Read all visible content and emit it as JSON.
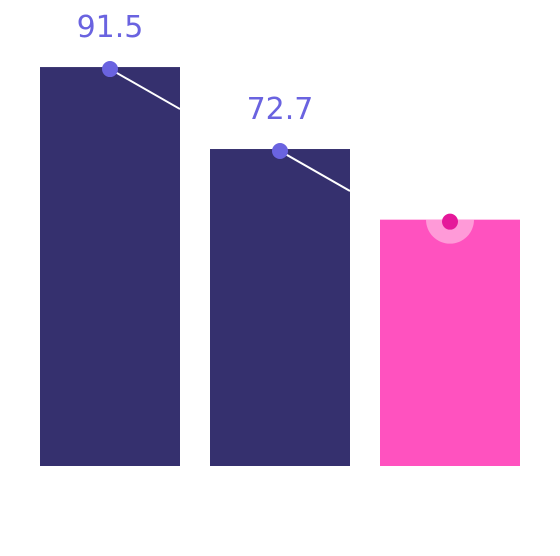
{
  "chart_data": {
    "type": "bar",
    "categories": [
      "",
      "",
      ""
    ],
    "values": [
      91.5,
      72.7,
      56.5
    ],
    "value_labels": [
      "91.5",
      "72.7",
      ""
    ],
    "title": "",
    "xlabel": "",
    "ylabel": "",
    "ylim": [
      0,
      100
    ],
    "grid": false,
    "legend": "none",
    "highlight_index": 2
  },
  "colors": {
    "bar": "#35306e",
    "bar_highlight": "#ff52bf",
    "point": "#6a63e0",
    "point_highlight": "#e5189a",
    "halo_highlight": "#ff9ad8",
    "label": "#6a63e0",
    "connector": "#ffffff"
  }
}
